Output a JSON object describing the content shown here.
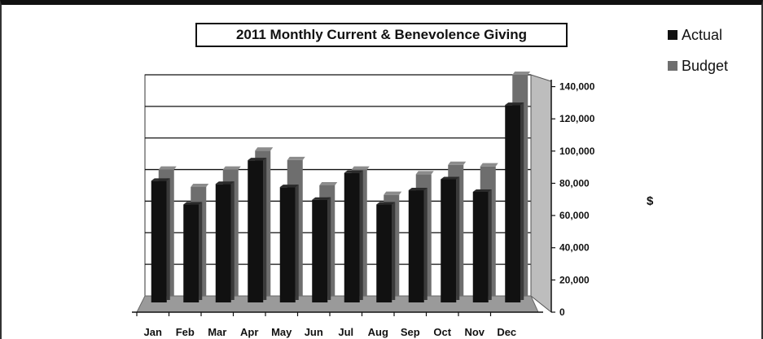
{
  "colors": {
    "actual": "#111111",
    "budget": "#6e6e6e",
    "floor": "#9a9a9a",
    "grid": "#111111"
  },
  "chart_data": {
    "type": "bar",
    "title": "2011 Monthly Current & Benevolence Giving",
    "xlabel": "",
    "ylabel": "$",
    "ylim": [
      0,
      140000
    ],
    "yticks": [
      0,
      20000,
      40000,
      60000,
      80000,
      100000,
      120000,
      140000
    ],
    "ytick_labels": [
      "0",
      "20,000",
      "40,000",
      "60,000",
      "80,000",
      "100,000",
      "120,000",
      "140,000"
    ],
    "categories": [
      "Jan",
      "Feb",
      "Mar",
      "Apr",
      "May",
      "Jun",
      "Jul",
      "Aug",
      "Sep",
      "Oct",
      "Nov",
      "Dec"
    ],
    "series": [
      {
        "name": "Actual",
        "values": [
          77000,
          62000,
          75000,
          90000,
          73000,
          65000,
          82000,
          62000,
          71000,
          78000,
          70000,
          125000
        ]
      },
      {
        "name": "Budget",
        "values": [
          80000,
          69000,
          80000,
          92000,
          86000,
          70000,
          80000,
          64000,
          77000,
          83000,
          82000,
          140000
        ]
      }
    ],
    "legend_position": "top-right",
    "grid": true
  }
}
